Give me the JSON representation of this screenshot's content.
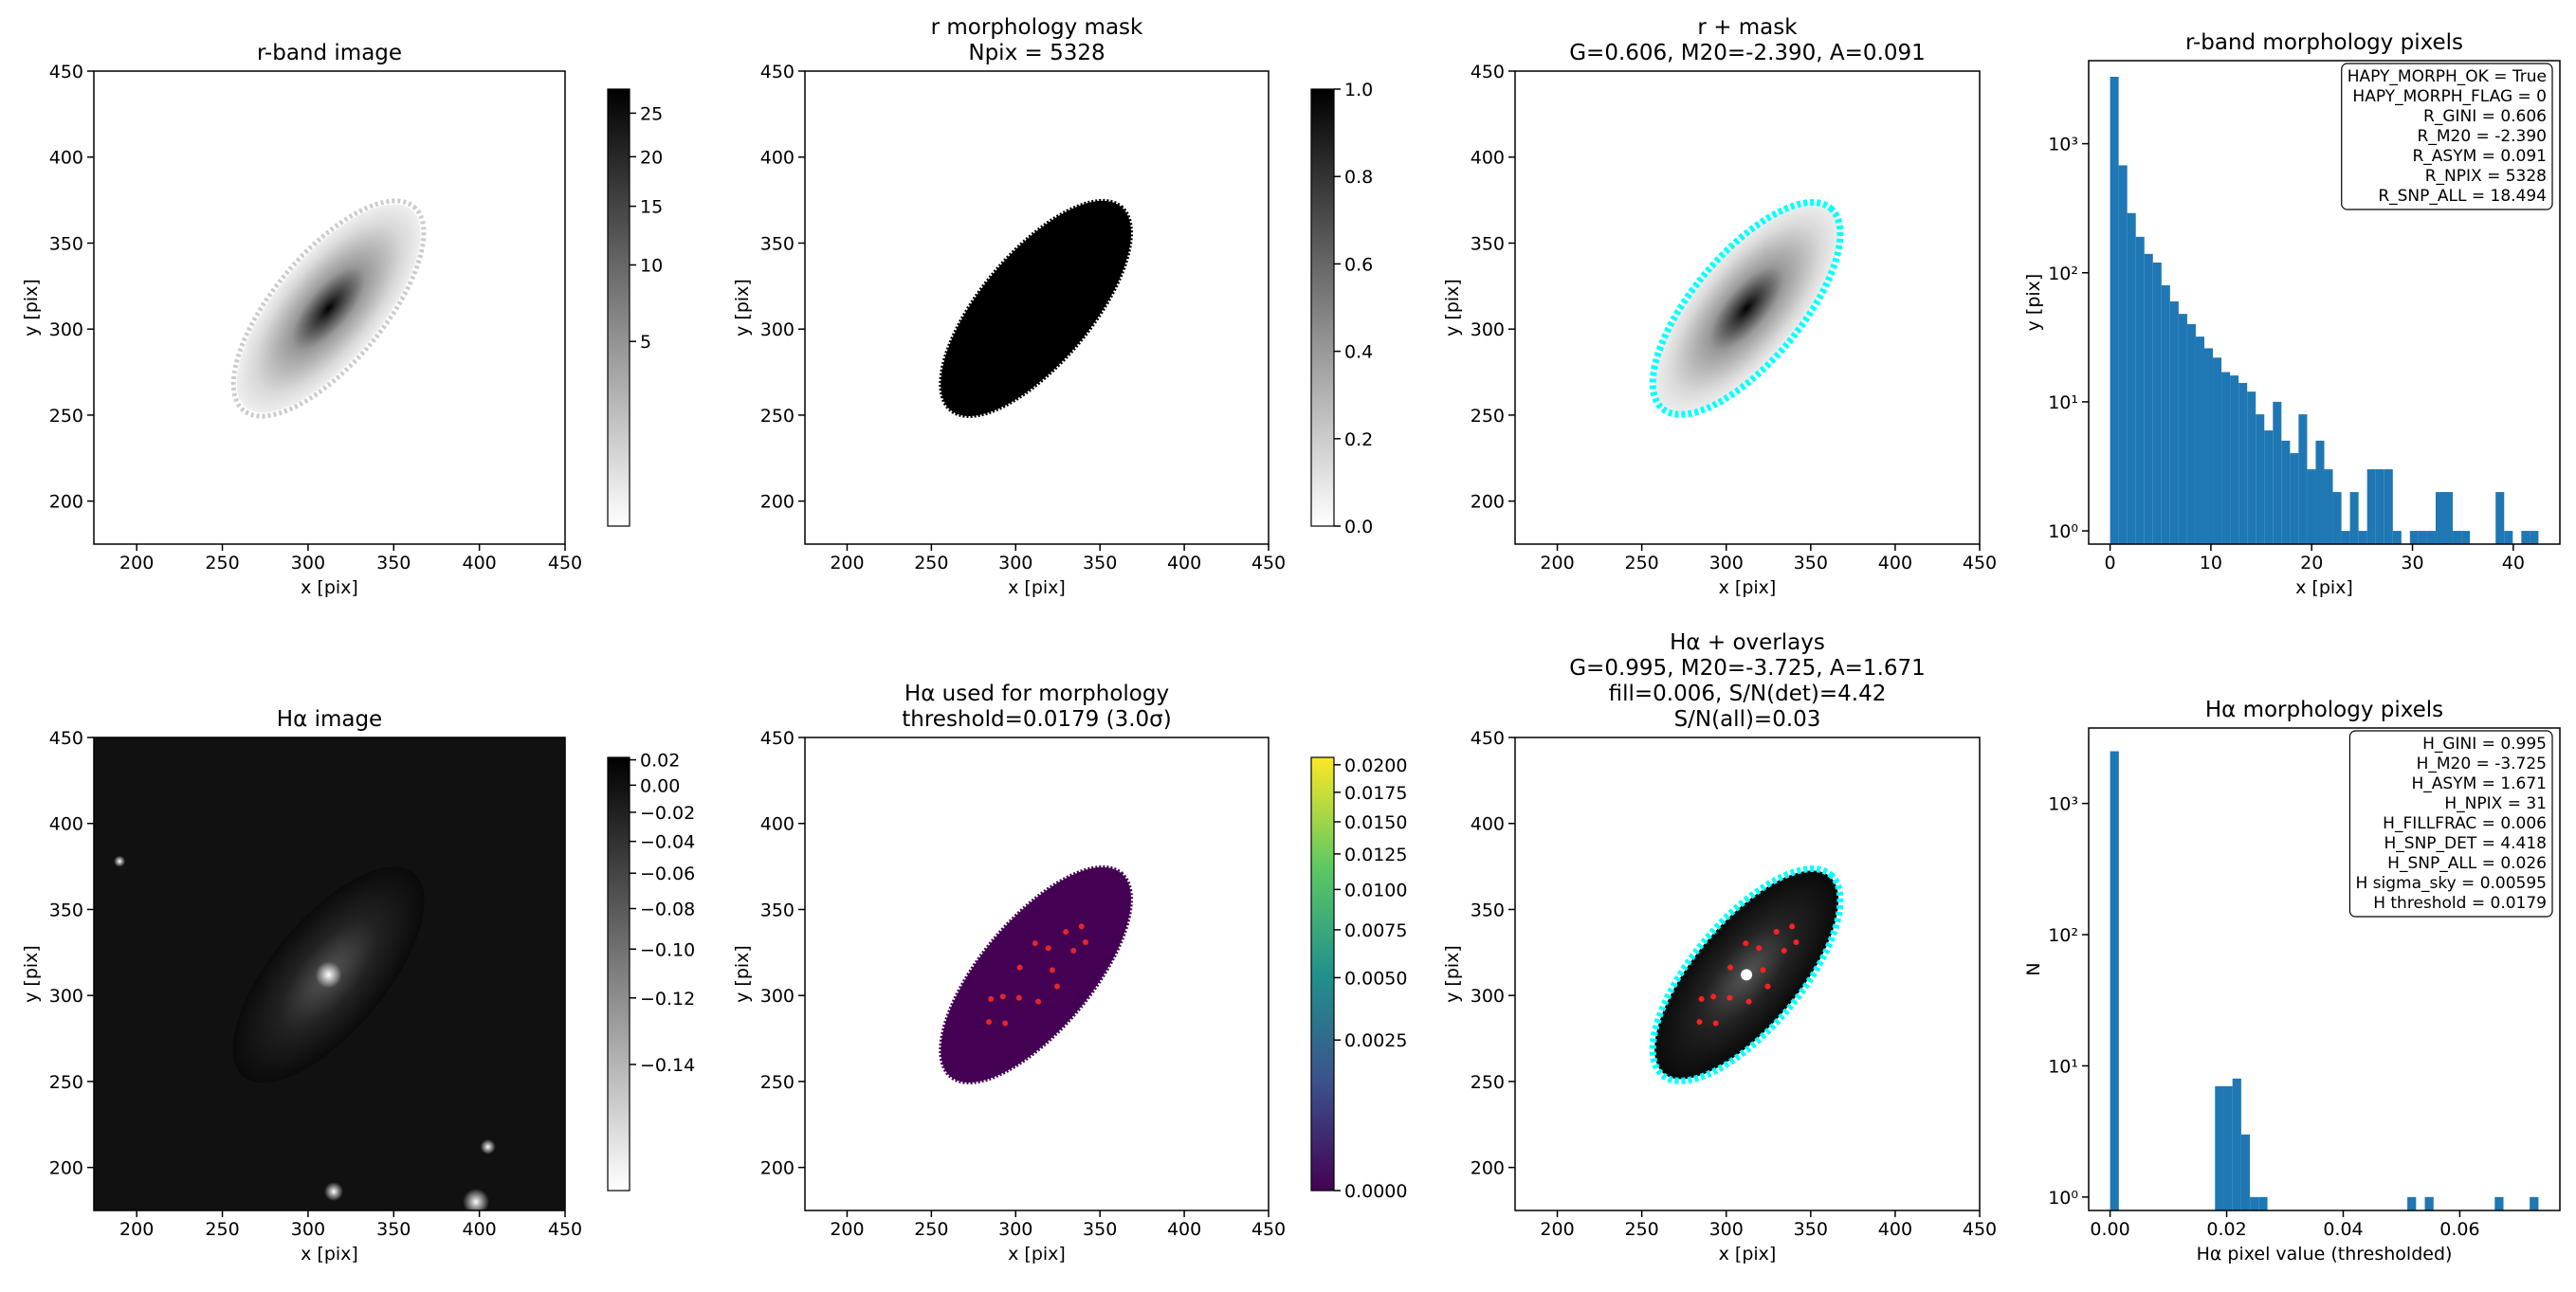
{
  "chart_data": [
    {
      "type": "image",
      "title": [
        "r-band image"
      ],
      "xlabel": "x [pix]",
      "ylabel": "y [pix]",
      "xlim": [
        175,
        450
      ],
      "ylim": [
        175,
        450
      ],
      "xticks": [
        200,
        250,
        300,
        350,
        400,
        450
      ],
      "yticks": [
        200,
        250,
        300,
        350,
        400,
        450
      ],
      "colorbar": {
        "cmap": "Greys",
        "stretch": "sqrt",
        "lim": [
          0,
          28
        ],
        "ticks": [
          5,
          10,
          15,
          20,
          25
        ]
      }
    },
    {
      "type": "image",
      "title": [
        "r morphology mask",
        "Npix = 5328"
      ],
      "xlabel": "x [pix]",
      "ylabel": "y [pix]",
      "xlim": [
        175,
        450
      ],
      "ylim": [
        175,
        450
      ],
      "xticks": [
        200,
        250,
        300,
        350,
        400,
        450
      ],
      "yticks": [
        200,
        250,
        300,
        350,
        400,
        450
      ],
      "colorbar": {
        "cmap": "Greys",
        "stretch": "linear",
        "lim": [
          0,
          1
        ],
        "ticks": [
          {
            "value": 0,
            "label": "0.0"
          },
          {
            "value": 0.2,
            "label": "0.2"
          },
          {
            "value": 0.4,
            "label": "0.4"
          },
          {
            "value": 0.6,
            "label": "0.6"
          },
          {
            "value": 0.8,
            "label": "0.8"
          },
          {
            "value": 1,
            "label": "1.0"
          }
        ]
      }
    },
    {
      "type": "image",
      "title": [
        "r + mask",
        "G=0.606, M20=-2.390, A=0.091"
      ],
      "xlabel": "x [pix]",
      "ylabel": "y [pix]",
      "xlim": [
        175,
        450
      ],
      "ylim": [
        175,
        450
      ],
      "xticks": [
        200,
        250,
        300,
        350,
        400,
        450
      ],
      "yticks": [
        200,
        250,
        300,
        350,
        400,
        450
      ]
    },
    {
      "type": "histogram",
      "title": [
        "r-band morphology pixels"
      ],
      "xlabel": "x [pix]",
      "ylabel": "y [pix]",
      "color": "#1f77b4",
      "log_y": true,
      "xlim": [
        -2.125,
        44.625
      ],
      "ylim": [
        0.79,
        4400
      ],
      "xticks": [
        0,
        10,
        20,
        30,
        40
      ],
      "yticks": [
        {
          "value": 1,
          "label": "10⁰"
        },
        {
          "value": 10,
          "label": "10¹"
        },
        {
          "value": 100,
          "label": "10²"
        },
        {
          "value": 1000,
          "label": "10³"
        }
      ],
      "bins": [
        0,
        0.85,
        1.7,
        2.55,
        3.4,
        4.25,
        5.1,
        5.95,
        6.8,
        7.65,
        8.5,
        9.35,
        10.2,
        11.05,
        11.9,
        12.75,
        13.6,
        14.45,
        15.3,
        16.15,
        17,
        17.85,
        18.7,
        19.55,
        20.4,
        21.25,
        22.1,
        22.95,
        23.8,
        24.65,
        25.5,
        26.35,
        27.2,
        28.05,
        28.9,
        29.75,
        30.6,
        31.45,
        32.3,
        33.15,
        34,
        34.85,
        35.7,
        36.55,
        37.4,
        38.25,
        39.1,
        39.95,
        40.8,
        41.65,
        42.5
      ],
      "counts": [
        3300,
        680,
        290,
        190,
        140,
        120,
        80,
        60,
        48,
        40,
        32,
        26,
        22,
        17,
        16,
        14,
        12,
        8,
        6,
        10,
        5,
        4,
        8,
        3,
        5,
        3,
        2,
        1,
        2,
        1,
        3,
        3,
        3,
        1,
        0,
        1,
        1,
        1,
        2,
        2,
        1,
        1,
        0,
        0,
        0,
        2,
        1,
        0,
        1,
        1
      ],
      "annotation_lines": [
        "HAPY_MORPH_OK = True",
        "HAPY_MORPH_FLAG = 0",
        "R_GINI = 0.606",
        "R_M20 = -2.390",
        "R_ASYM = 0.091",
        "R_NPIX = 5328",
        "R_SNP_ALL = 18.494"
      ]
    },
    {
      "type": "image",
      "title": [
        "Hα image"
      ],
      "xlabel": "x [pix]",
      "ylabel": "y [pix]",
      "xlim": [
        175,
        450
      ],
      "ylim": [
        175,
        450
      ],
      "xticks": [
        200,
        250,
        300,
        350,
        400,
        450
      ],
      "yticks": [
        200,
        250,
        300,
        350,
        400,
        450
      ],
      "colorbar": {
        "cmap": "Greys",
        "stretch": "sqrt",
        "lim": [
          -0.155,
          0.022
        ],
        "ticks": [
          {
            "value": -0.14,
            "label": "−0.14"
          },
          {
            "value": -0.12,
            "label": "−0.12"
          },
          {
            "value": -0.1,
            "label": "−0.10"
          },
          {
            "value": -0.08,
            "label": "−0.08"
          },
          {
            "value": -0.06,
            "label": "−0.06"
          },
          {
            "value": -0.04,
            "label": "−0.04"
          },
          {
            "value": -0.02,
            "label": "−0.02"
          },
          {
            "value": 0,
            "label": "0.00"
          },
          {
            "value": 0.02,
            "label": "0.02"
          }
        ]
      }
    },
    {
      "type": "image",
      "title": [
        "Hα used for morphology",
        "threshold=0.0179 (3.0σ)"
      ],
      "xlabel": "x [pix]",
      "ylabel": "y [pix]",
      "xlim": [
        175,
        450
      ],
      "ylim": [
        175,
        450
      ],
      "xticks": [
        200,
        250,
        300,
        350,
        400,
        450
      ],
      "yticks": [
        200,
        250,
        300,
        350,
        400,
        450
      ],
      "colorbar": {
        "cmap": "viridis",
        "stretch": "sqrt",
        "lim": [
          0,
          0.0207
        ],
        "ticks": [
          {
            "value": 0,
            "label": "0.0000"
          },
          {
            "value": 0.0025,
            "label": "0.0025"
          },
          {
            "value": 0.005,
            "label": "0.0050"
          },
          {
            "value": 0.0075,
            "label": "0.0075"
          },
          {
            "value": 0.01,
            "label": "0.0100"
          },
          {
            "value": 0.0125,
            "label": "0.0125"
          },
          {
            "value": 0.015,
            "label": "0.0150"
          },
          {
            "value": 0.0175,
            "label": "0.0175"
          },
          {
            "value": 0.02,
            "label": "0.0200"
          }
        ]
      }
    },
    {
      "type": "image",
      "title": [
        "Hα + overlays",
        "G=0.995, M20=-3.725, A=1.671",
        "fill=0.006, S/N(det)=4.42",
        "S/N(all)=0.03"
      ],
      "xlabel": "x [pix]",
      "ylabel": "y [pix]",
      "xlim": [
        175,
        450
      ],
      "ylim": [
        175,
        450
      ],
      "xticks": [
        200,
        250,
        300,
        350,
        400,
        450
      ],
      "yticks": [
        200,
        250,
        300,
        350,
        400,
        450
      ]
    },
    {
      "type": "histogram",
      "title": [
        "Hα morphology pixels"
      ],
      "xlabel": "Hα pixel value (thresholded)",
      "ylabel": "N",
      "color": "#1f77b4",
      "log_y": true,
      "xlim": [
        -0.003675,
        0.077175
      ],
      "ylim": [
        0.79,
        3760
      ],
      "xticks": [
        {
          "value": 0,
          "label": "0.00"
        },
        {
          "value": 0.02,
          "label": "0.02"
        },
        {
          "value": 0.04,
          "label": "0.04"
        },
        {
          "value": 0.06,
          "label": "0.06"
        }
      ],
      "yticks": [
        {
          "value": 1,
          "label": "10⁰"
        },
        {
          "value": 10,
          "label": "10¹"
        },
        {
          "value": 100,
          "label": "10²"
        },
        {
          "value": 1000,
          "label": "10³"
        }
      ],
      "bins": [
        0,
        0.0015,
        0.003,
        0.0045,
        0.006,
        0.0075,
        0.009,
        0.0105,
        0.012,
        0.0135,
        0.015,
        0.0165,
        0.018,
        0.0195,
        0.021,
        0.0225,
        0.024,
        0.0255,
        0.027,
        0.0285,
        0.03,
        0.0315,
        0.033,
        0.0345,
        0.036,
        0.0375,
        0.039,
        0.0405,
        0.042,
        0.0435,
        0.045,
        0.0465,
        0.048,
        0.0495,
        0.051,
        0.0525,
        0.054,
        0.0555,
        0.057,
        0.0585,
        0.06,
        0.0615,
        0.063,
        0.0645,
        0.066,
        0.0675,
        0.069,
        0.0705,
        0.072,
        0.0735
      ],
      "counts": [
        2500,
        0,
        0,
        0,
        0,
        0,
        0,
        0,
        0,
        0,
        0,
        0,
        7,
        7,
        8,
        3,
        1,
        1,
        0,
        0,
        0,
        0,
        0,
        0,
        0,
        0,
        0,
        0,
        0,
        0,
        0,
        0,
        0,
        0,
        1,
        0,
        1,
        0,
        0,
        0,
        0,
        0,
        0,
        0,
        1,
        0,
        0,
        0,
        1
      ],
      "annotation_lines": [
        "H_GINI = 0.995",
        "H_M20 = -3.725",
        "H_ASYM = 1.671",
        "H_NPIX = 31",
        "H_FILLFRAC = 0.006",
        "H_SNP_DET = 4.418",
        "H_SNP_ALL = 0.026",
        "H sigma_sky = 0.00595",
        "H threshold = 0.0179"
      ]
    }
  ]
}
